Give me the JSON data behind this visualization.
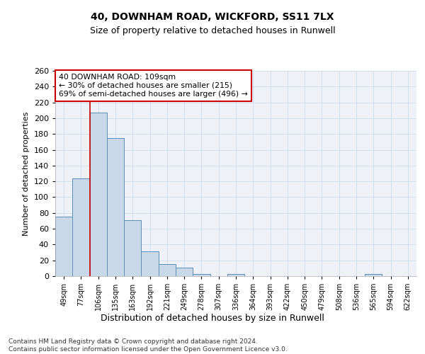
{
  "title1": "40, DOWNHAM ROAD, WICKFORD, SS11 7LX",
  "title2": "Size of property relative to detached houses in Runwell",
  "xlabel": "Distribution of detached houses by size in Runwell",
  "ylabel": "Number of detached properties",
  "categories": [
    "49sqm",
    "77sqm",
    "106sqm",
    "135sqm",
    "163sqm",
    "192sqm",
    "221sqm",
    "249sqm",
    "278sqm",
    "307sqm",
    "336sqm",
    "364sqm",
    "393sqm",
    "422sqm",
    "450sqm",
    "479sqm",
    "508sqm",
    "536sqm",
    "565sqm",
    "594sqm",
    "622sqm"
  ],
  "values": [
    75,
    124,
    207,
    175,
    71,
    31,
    15,
    11,
    3,
    0,
    3,
    0,
    0,
    0,
    0,
    0,
    0,
    0,
    3,
    0,
    0
  ],
  "bar_color": "#c8d8e8",
  "bar_edge_color": "#5b8db8",
  "property_line_color": "#cc0000",
  "property_line_x": 1.5,
  "annotation_line1": "40 DOWNHAM ROAD: 109sqm",
  "annotation_line2": "← 30% of detached houses are smaller (215)",
  "annotation_line3": "69% of semi-detached houses are larger (496) →",
  "annotation_box_color": "#cc0000",
  "ylim": [
    0,
    260
  ],
  "yticks": [
    0,
    20,
    40,
    60,
    80,
    100,
    120,
    140,
    160,
    180,
    200,
    220,
    240,
    260
  ],
  "footer_text": "Contains HM Land Registry data © Crown copyright and database right 2024.\nContains public sector information licensed under the Open Government Licence v3.0.",
  "grid_color": "#c8d8e8",
  "bg_color": "#eef2f8"
}
